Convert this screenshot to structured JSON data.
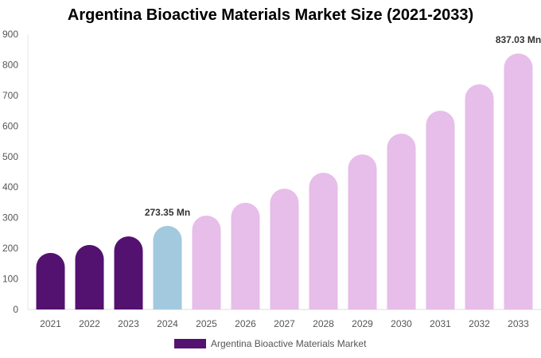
{
  "chart_data": {
    "type": "bar",
    "title": "Argentina Bioactive Materials Market Size (2021-2033)",
    "categories": [
      "2021",
      "2022",
      "2023",
      "2024",
      "2025",
      "2026",
      "2027",
      "2028",
      "2029",
      "2030",
      "2031",
      "2032",
      "2033"
    ],
    "series": [
      {
        "name": "Argentina Bioactive Materials Market",
        "values": [
          185,
          211,
          239,
          273.35,
          307,
          349,
          395,
          447,
          507,
          575,
          650,
          736,
          837.03
        ]
      }
    ],
    "data_labels": [
      {
        "category": "2024",
        "text": "273.35 Mn"
      },
      {
        "category": "2033",
        "text": "837.03 Mn"
      }
    ],
    "ylim": [
      0,
      900
    ],
    "yticks": [
      0,
      100,
      200,
      300,
      400,
      500,
      600,
      700,
      800,
      900
    ],
    "grid": false,
    "legend_position": "bottom",
    "colors": {
      "historical": "#541270",
      "current": "#a3c9de",
      "forecast": "#e7bde9"
    },
    "bar_color_groups": [
      "historical",
      "historical",
      "historical",
      "current",
      "forecast",
      "forecast",
      "forecast",
      "forecast",
      "forecast",
      "forecast",
      "forecast",
      "forecast",
      "forecast"
    ]
  }
}
